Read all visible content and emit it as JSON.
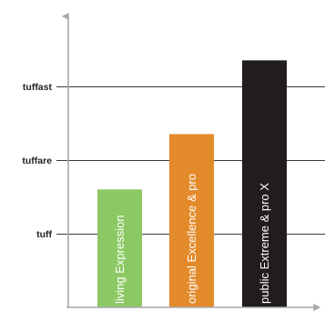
{
  "chart_data": {
    "type": "bar",
    "categories": [
      "living Expression",
      "original Excellence & pro",
      "public Extreme & pro X"
    ],
    "values": [
      1.6,
      2.35,
      3.35
    ],
    "colors": [
      "#8cc964",
      "#e38b2a",
      "#211d1e"
    ],
    "title": "",
    "xlabel": "",
    "ylabel": "",
    "ylim": [
      0,
      3.7
    ],
    "yticks": [
      {
        "value": 1,
        "label": "tuff"
      },
      {
        "value": 2,
        "label": "tuffare"
      },
      {
        "value": 3,
        "label": "tuffast"
      }
    ],
    "grid": true,
    "axis_color": "#a7a9ac",
    "grid_color": "#3a3a3a"
  }
}
